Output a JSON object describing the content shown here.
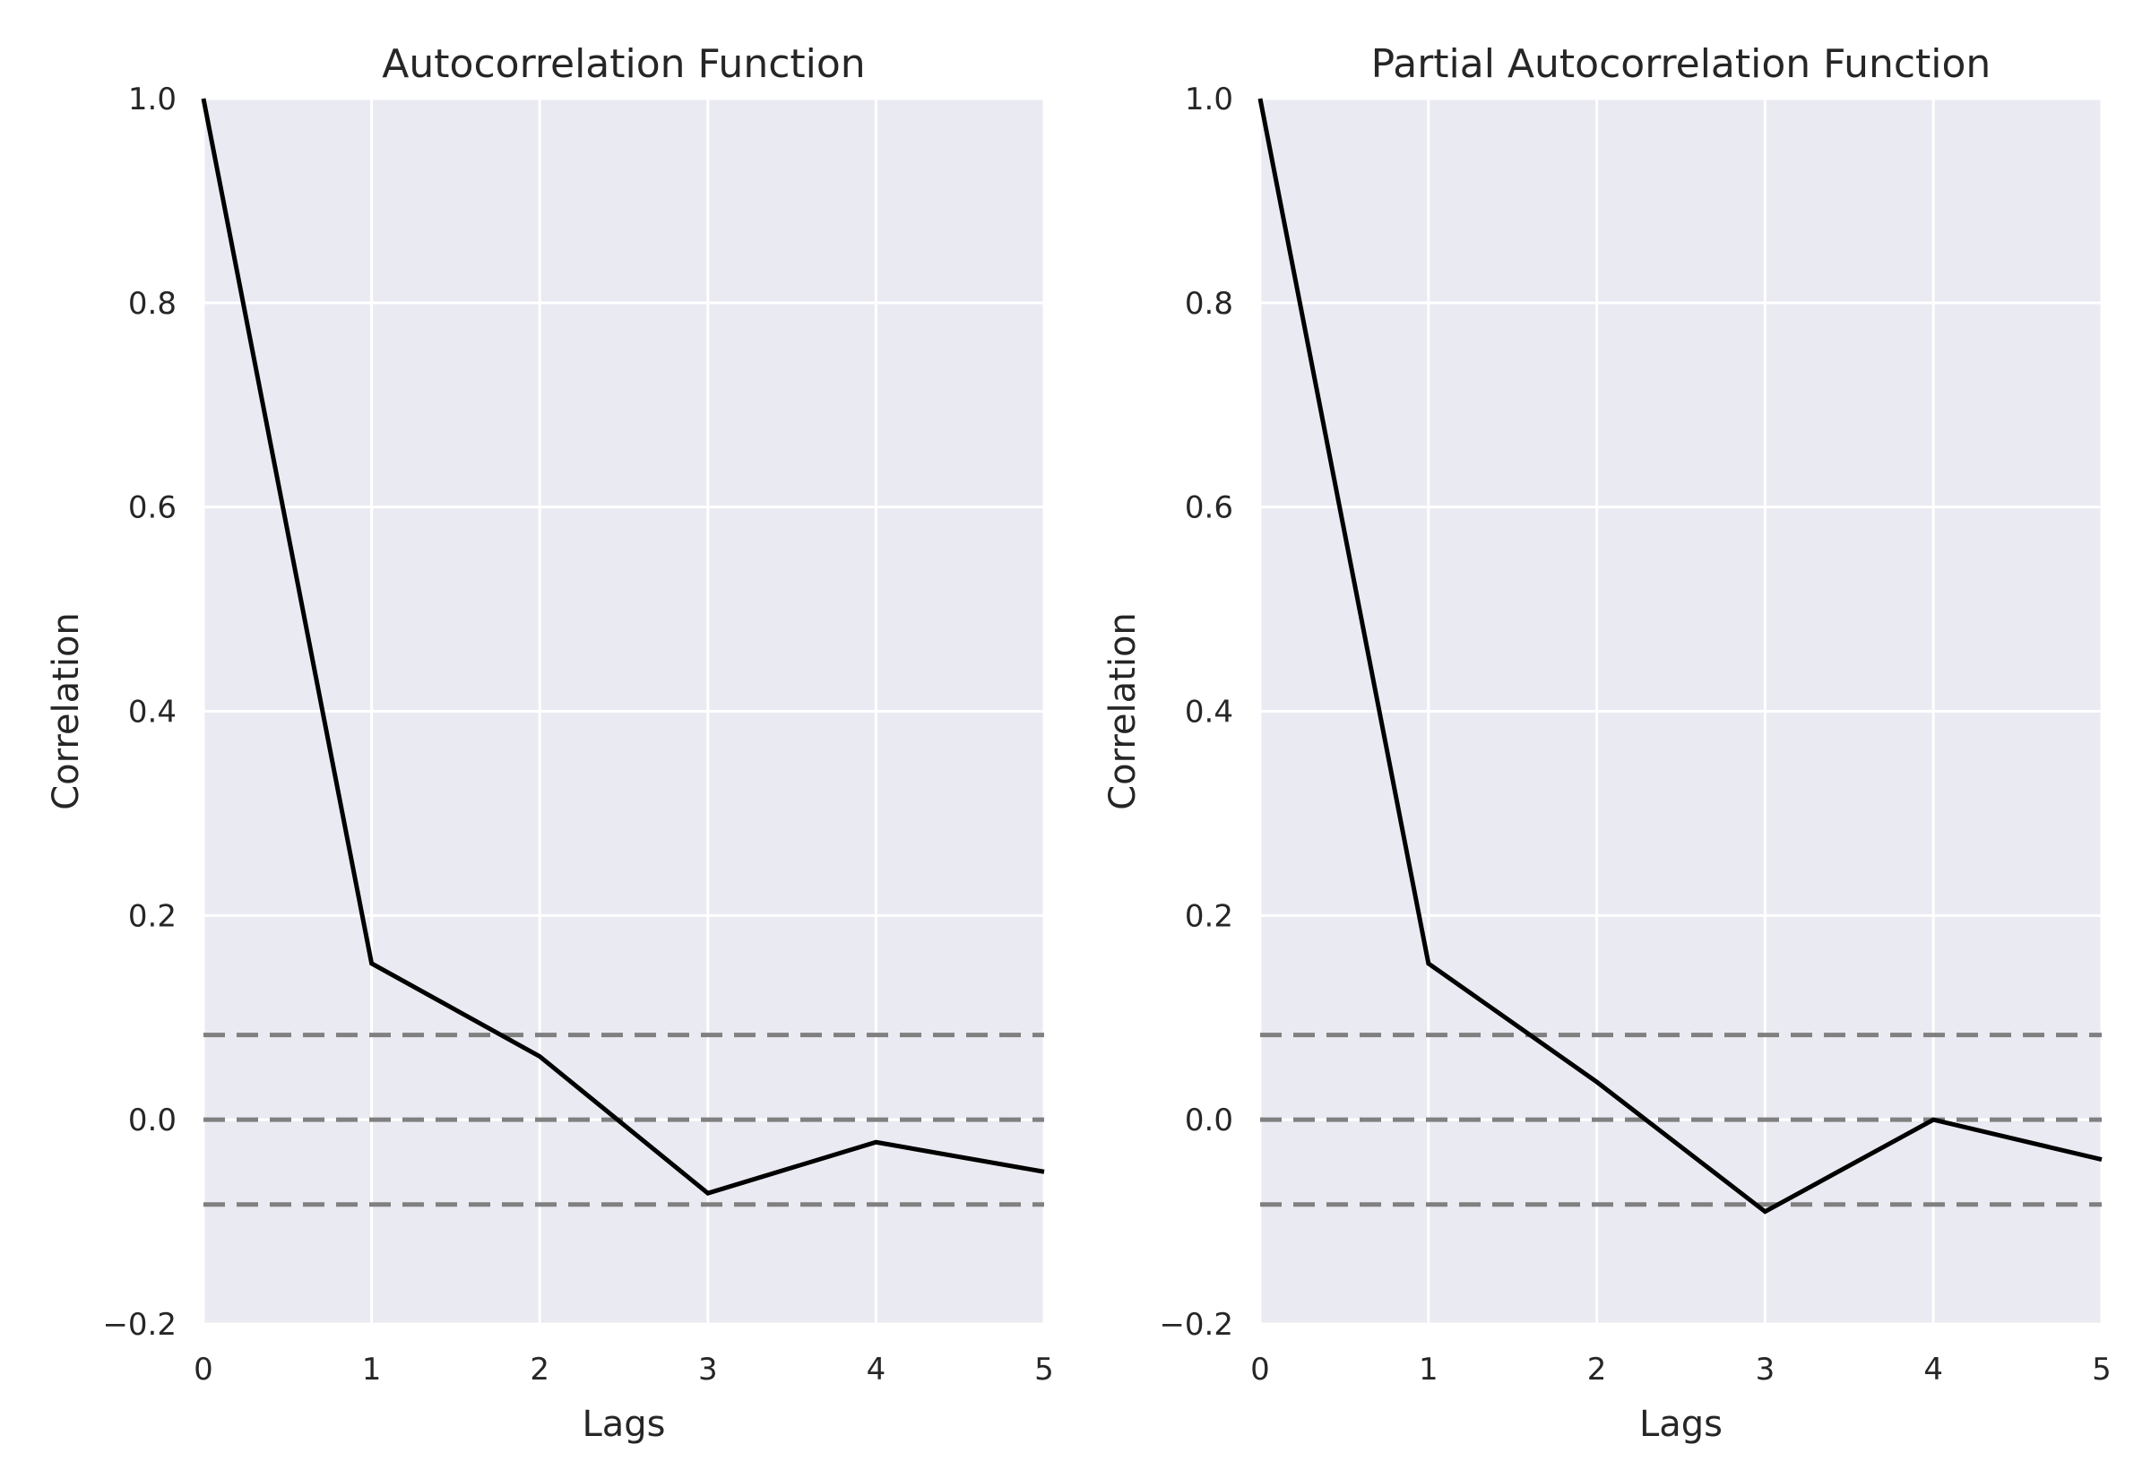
{
  "chart_data": [
    {
      "type": "line",
      "title": "Autocorrelation Function",
      "xlabel": "Lags",
      "ylabel": "Correlation",
      "xlim": [
        0,
        5
      ],
      "ylim": [
        -0.2,
        1.0
      ],
      "xticks": [
        "0",
        "1",
        "2",
        "3",
        "4",
        "5"
      ],
      "yticks": [
        "−0.2",
        "0.0",
        "0.2",
        "0.4",
        "0.6",
        "0.8",
        "1.0"
      ],
      "grid": true,
      "x": [
        0,
        1,
        2,
        3,
        4,
        5
      ],
      "series": [
        {
          "values": [
            1.0,
            0.153,
            0.062,
            -0.072,
            -0.022,
            -0.051
          ],
          "color": "#000000"
        }
      ],
      "reference_lines": [
        {
          "y": 0.083,
          "style": "dashed",
          "color": "#808080"
        },
        {
          "y": 0.0,
          "style": "dashed",
          "color": "#808080"
        },
        {
          "y": -0.083,
          "style": "dashed",
          "color": "#808080"
        }
      ]
    },
    {
      "type": "line",
      "title": "Partial Autocorrelation Function",
      "xlabel": "Lags",
      "ylabel": "Correlation",
      "xlim": [
        0,
        5
      ],
      "ylim": [
        -0.2,
        1.0
      ],
      "xticks": [
        "0",
        "1",
        "2",
        "3",
        "4",
        "5"
      ],
      "yticks": [
        "−0.2",
        "0.0",
        "0.2",
        "0.4",
        "0.6",
        "0.8",
        "1.0"
      ],
      "grid": true,
      "x": [
        0,
        1,
        2,
        3,
        4,
        5
      ],
      "series": [
        {
          "values": [
            1.0,
            0.153,
            0.037,
            -0.09,
            0.0,
            -0.039
          ],
          "color": "#000000"
        }
      ],
      "reference_lines": [
        {
          "y": 0.083,
          "style": "dashed",
          "color": "#808080"
        },
        {
          "y": 0.0,
          "style": "dashed",
          "color": "#808080"
        },
        {
          "y": -0.083,
          "style": "dashed",
          "color": "#808080"
        }
      ]
    }
  ]
}
